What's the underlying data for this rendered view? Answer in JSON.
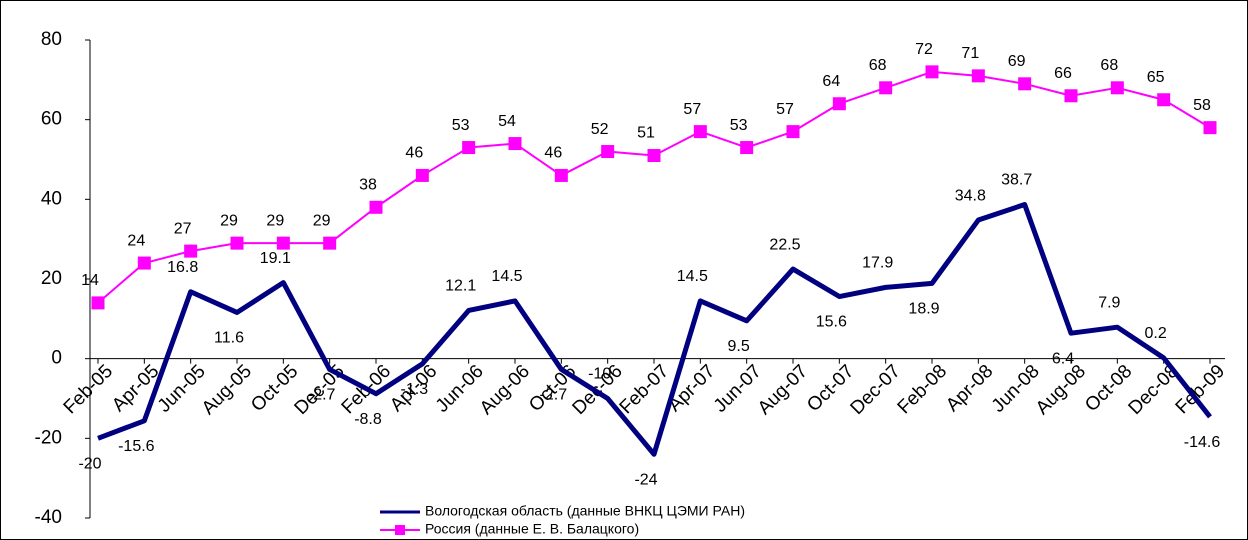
{
  "chart_data": {
    "type": "line",
    "categories": [
      "Feb-05",
      "Apr-05",
      "Jun-05",
      "Aug-05",
      "Oct-05",
      "Dec-05",
      "Feb-06",
      "Apr-06",
      "Jun-06",
      "Aug-06",
      "Oct-06",
      "Dec-06",
      "Feb-07",
      "Apr-07",
      "Jun-07",
      "Aug-07",
      "Oct-07",
      "Dec-07",
      "Feb-08",
      "Apr-08",
      "Jun-08",
      "Aug-08",
      "Oct-08",
      "Dec-08",
      "Feb-09"
    ],
    "series": [
      {
        "name": "Вологодская область (данные  ВНКЦ ЦЭМИ РАН)",
        "color": "#000080",
        "marker": false,
        "values": [
          -20,
          -15.6,
          16.8,
          11.6,
          19.1,
          -2.7,
          -8.8,
          -1.3,
          12.1,
          14.5,
          -2.7,
          -10,
          -24,
          14.5,
          9.5,
          22.5,
          15.6,
          17.9,
          18.9,
          34.8,
          38.7,
          6.4,
          7.9,
          0.2,
          -14.6
        ]
      },
      {
        "name": "Россия (данные Е. В. Балацкого)",
        "color": "#ff00ff",
        "marker": true,
        "values": [
          14,
          24,
          27,
          29,
          29,
          29,
          38,
          46,
          53,
          54,
          46,
          52,
          51,
          57,
          53,
          57,
          64,
          68,
          72,
          71,
          69,
          66,
          68,
          65,
          58
        ]
      }
    ],
    "ylim": [
      -40,
      80
    ],
    "yticks": [
      -40,
      -20,
      0,
      20,
      40,
      60,
      80
    ],
    "grid": false
  }
}
